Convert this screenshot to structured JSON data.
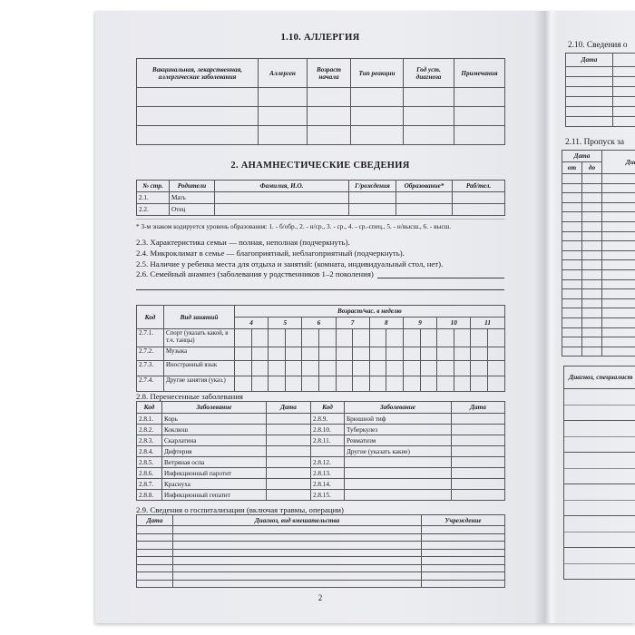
{
  "page_number": "2",
  "colors": {
    "paper": "#ecedf1",
    "table_line": "#54545c",
    "ink": "#1b1b1f"
  },
  "left_page": {
    "allergy": {
      "title": "1.10. АЛЛЕРГИЯ",
      "headers": [
        "Вакцинальная, лекарственная, аллергические заболевания",
        "Аллерген",
        "Возраст начала",
        "Тип реакции",
        "Год уст. диагноза",
        "Примечания"
      ],
      "empty_rows": 3
    },
    "anamnesis_title": "2. АНАМНЕСТИЧЕСКИЕ СВЕДЕНИЯ",
    "parents": {
      "headers": [
        "№ стр.",
        "Родители",
        "Фамилия, И.О.",
        "Г/рождения",
        "Образование*",
        "Раб/тел."
      ],
      "rows": [
        [
          "2.1.",
          "Мать"
        ],
        [
          "2.2.",
          "Отец"
        ]
      ]
    },
    "footnote": "* 3-м знаком кодируется уровень образования: 1. - б/обр., 2. - н/ср., 3. - ср., 4. - ср.-спец., 5. - н/высш., 6. - высш.",
    "items": [
      "2.3. Характеристика семьи — полная, неполная (подчеркнуть).",
      "2.4. Микроклимат в семье — благоприятный, неблагоприятный (подчеркнуть).",
      "2.5. Наличие у ребенка места для отдыха и занятий: (комната, индивидуальный стол, нет).",
      "2.6. Семейный анамнез (заболевания у родственников 1–2 поколения)"
    ],
    "activities": {
      "code_header": "Код",
      "activity_header": "Вид занятий",
      "age_span_header": "Возраст/час. в неделю",
      "ages": [
        "4",
        "5",
        "6",
        "7",
        "8",
        "9",
        "10",
        "11"
      ],
      "rows": [
        [
          "2.7.1.",
          "Спорт (указать какой, в т.ч. танцы)"
        ],
        [
          "2.7.2.",
          "Музыка"
        ],
        [
          "2.7.3.",
          "Иностранный язык"
        ],
        [
          "2.7.4.",
          "Другие занятия (указ.)"
        ]
      ]
    },
    "diseases": {
      "title": "2.8. Перенесенные заболевания",
      "headers": [
        "Код",
        "Заболевание",
        "Дата",
        "Код",
        "Заболевание",
        "Дата"
      ],
      "rows": [
        [
          "2.8.1.",
          "Корь",
          "2.8.9.",
          "Брюшной тиф"
        ],
        [
          "2.8.2.",
          "Коклюш",
          "2.8.10.",
          "Туберкулез"
        ],
        [
          "2.8.3.",
          "Скарлатина",
          "2.8.11.",
          "Ревматизм"
        ],
        [
          "2.8.4.",
          "Дифтерия",
          "",
          "Другие (указать какие)"
        ],
        [
          "2.8.5.",
          "Ветряная оспа",
          "2.8.12.",
          ""
        ],
        [
          "2.8.6.",
          "Инфекционный паротит",
          "2.8.13.",
          ""
        ],
        [
          "2.8.7.",
          "Краснуха",
          "2.8.14.",
          ""
        ],
        [
          "2.8.8.",
          "Инфекционный гепатит",
          "2.8.15.",
          ""
        ]
      ]
    },
    "hospitalization": {
      "title": "2.9. Сведения о госпитализации (включая травмы, операции)",
      "headers": [
        "Дата",
        "Диагноз, вид вмешательства",
        "Учреждение"
      ],
      "empty_rows": 8
    }
  },
  "right_page": {
    "section_210": {
      "title": "2.10. Сведения о",
      "date_header": "Дата",
      "empty_rows": 6
    },
    "section_211": {
      "title": "2.11. Пропуск за",
      "date_header": "Дата",
      "from_header": "от",
      "to_header": "до",
      "diagnosis_header": "Диагноз",
      "empty_rows": 19
    },
    "bottom_table": {
      "header": "Диагноз, специалист",
      "empty_rows": 6
    }
  }
}
